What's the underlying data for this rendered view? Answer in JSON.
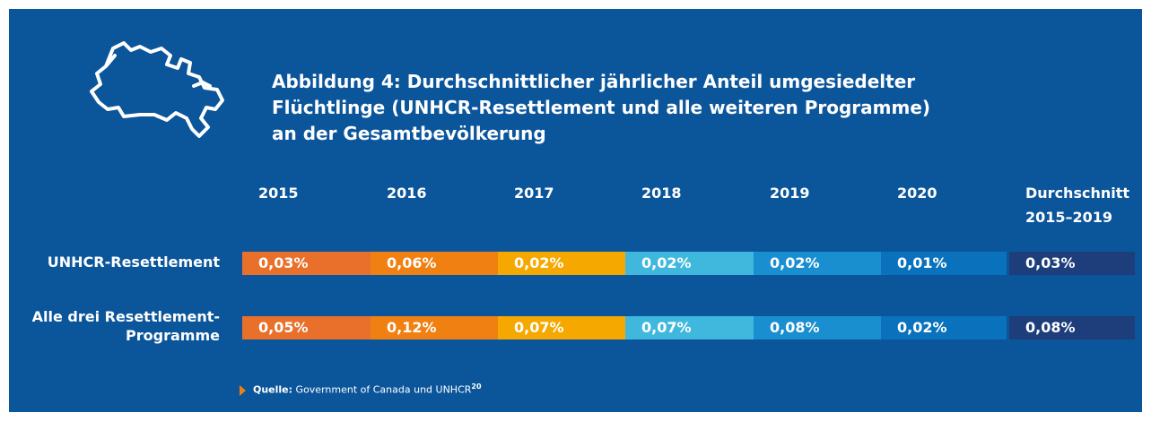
{
  "title": [
    "Abbildung 4: Durchschnittlicher jährlicher Anteil umgesiedelter",
    "Flüchtlinge (UNHCR-Resettlement und alle weiteren Programme)",
    "an der Gesamtbevölkerung"
  ],
  "table": {
    "columns": [
      [
        "2015"
      ],
      [
        "2016"
      ],
      [
        "2017"
      ],
      [
        "2018"
      ],
      [
        "2019"
      ],
      [
        "2020"
      ],
      [
        "Durchschnitt",
        "2015–2019"
      ]
    ],
    "column_colors": [
      "#e8702a",
      "#f08012",
      "#f5a800",
      "#40b8de",
      "#1a8fd0",
      "#0a72bc",
      "#1d3e7a"
    ],
    "rows": [
      {
        "label": [
          "UNHCR-Resettlement"
        ],
        "cells": [
          "0,03%",
          "0,06%",
          "0,02%",
          "0,02%",
          "0,02%",
          "0,01%",
          "0,03%"
        ]
      },
      {
        "label": [
          "Alle drei Resettlement-",
          "Programme"
        ],
        "cells": [
          "0,05%",
          "0,12%",
          "0,07%",
          "0,07%",
          "0,08%",
          "0,02%",
          "0,08%"
        ]
      }
    ]
  },
  "source": {
    "label": "Quelle:",
    "text": " Government of Canada und UNHCR",
    "note": "20"
  }
}
